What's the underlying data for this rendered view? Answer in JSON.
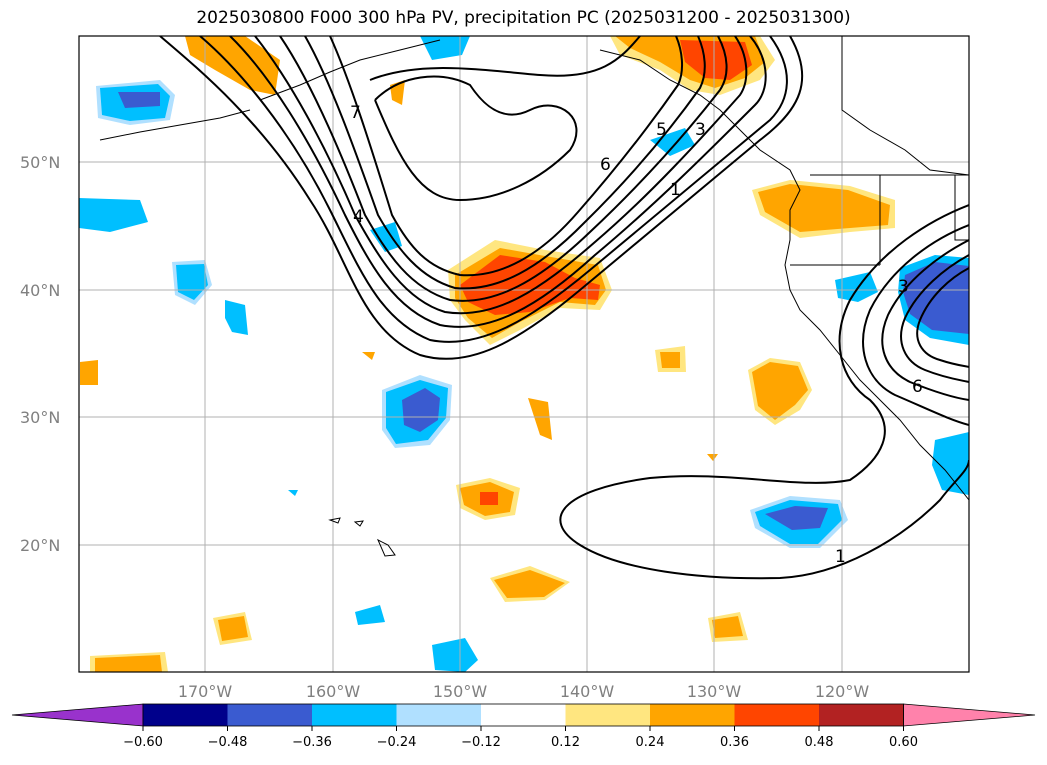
{
  "title": "2025030800 F000 300 hPa PV, precipitation PC (2025031200 - 2025031300)",
  "map": {
    "lat_labels": [
      "50°N",
      "40°N",
      "30°N",
      "20°N"
    ],
    "lon_labels": [
      "170°W",
      "160°W",
      "150°W",
      "140°W",
      "130°W",
      "120°W"
    ],
    "contour_labels": [
      "7",
      "4",
      "6",
      "5",
      "3",
      "1",
      "3",
      "6",
      "1"
    ],
    "colors": {
      "pv_contour": "#000000",
      "grid": "#b0b0b0",
      "coast": "#000000"
    }
  },
  "colorbar": {
    "ticks": [
      "−0.60",
      "−0.48",
      "−0.36",
      "−0.24",
      "−0.12",
      "0.12",
      "0.24",
      "0.36",
      "0.48",
      "0.60"
    ],
    "colors": [
      "#9932cc",
      "#00008b",
      "#3a5bd0",
      "#00bfff",
      "#b0e0ff",
      "#ffffff",
      "#ffe680",
      "#ffa500",
      "#ff4500",
      "#b22222",
      "#ff82ab"
    ]
  }
}
